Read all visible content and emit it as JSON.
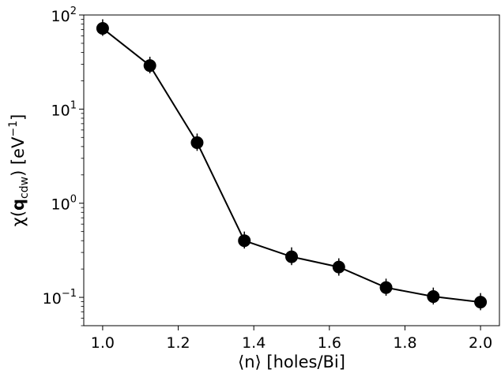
{
  "chart_data": {
    "type": "scatter",
    "x": [
      1.0,
      1.125,
      1.25,
      1.375,
      1.5,
      1.625,
      1.75,
      1.875,
      2.0
    ],
    "series": [
      {
        "values": [
          72,
          29,
          4.4,
          0.4,
          0.27,
          0.21,
          0.127,
          0.102,
          0.089
        ],
        "errors_low": [
          60,
          24,
          3.6,
          0.33,
          0.22,
          0.17,
          0.104,
          0.084,
          0.073
        ],
        "errors_high": [
          90,
          36,
          5.5,
          0.5,
          0.34,
          0.26,
          0.158,
          0.127,
          0.111
        ],
        "x_err": 0.012,
        "line": true,
        "marker": "circle",
        "color": "#000000"
      }
    ],
    "xlabel": "⟨n⟩  [holes/Bi]",
    "ylabel": {
      "prefix": "χ(",
      "bold": "q",
      "subscript": "cdw",
      "suffix": ")   [eV",
      "superscript": "−1",
      "end": "]"
    },
    "xlim": [
      0.95,
      2.05
    ],
    "ylim": [
      0.05,
      100
    ],
    "yscale": "log",
    "xticks": [
      "1.0",
      "1.2",
      "1.4",
      "1.6",
      "1.8",
      "2.0"
    ],
    "xtick_values": [
      1.0,
      1.2,
      1.4,
      1.6,
      1.8,
      2.0
    ],
    "yticks": [
      {
        "value": 0.1,
        "base": "10",
        "exp": "−1"
      },
      {
        "value": 1,
        "base": "10",
        "exp": "0"
      },
      {
        "value": 10,
        "base": "10",
        "exp": "1"
      },
      {
        "value": 100,
        "base": "10",
        "exp": "2"
      }
    ],
    "grid": false,
    "legend": null
  }
}
